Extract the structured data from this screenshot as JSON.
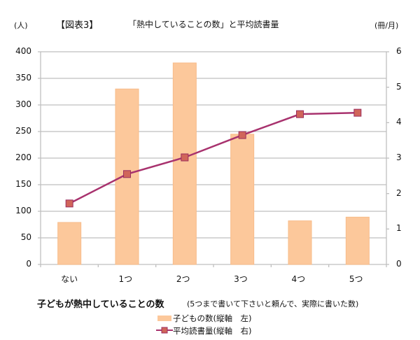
{
  "header": {
    "left_unit": "(人)",
    "figure_label": "【図表3】",
    "title": "「熱中していることの数」と平均読書量",
    "right_unit": "(冊/月)"
  },
  "axes": {
    "left_ticks": [
      "400",
      "350",
      "300",
      "250",
      "200",
      "150",
      "100",
      "50",
      "0"
    ],
    "right_ticks": [
      "6",
      "5",
      "4",
      "3",
      "2",
      "1",
      "0"
    ],
    "categories": [
      "ない",
      "1つ",
      "2つ",
      "3つ",
      "4つ",
      "5つ"
    ]
  },
  "xaxis": {
    "title": "子どもが熱中していることの数",
    "note": "(5つまで書いて下さいと頼んで、実際に書いた数)"
  },
  "legend": {
    "bar_label": "子どもの数(縦軸　左)",
    "line_label": "平均読書量(縦軸　右)"
  },
  "colors": {
    "bar_fill": "#FCC89B",
    "bar_border": "#F7BC8A",
    "line": "#A8326E",
    "marker_fill": "#D0655A",
    "marker_border": "#9B2D5E",
    "grid": "#BFBFBF"
  },
  "chart_data": {
    "type": "bar",
    "title": "「熱中していることの数」と平均読書量",
    "categories": [
      "ない",
      "1つ",
      "2つ",
      "3つ",
      "4つ",
      "5つ"
    ],
    "xlabel": "子どもが熱中していることの数 (5つまで書いて下さいと頼んで、実際に書いた数)",
    "ylabel": "(人)",
    "y2label": "(冊/月)",
    "ylim": [
      0,
      400
    ],
    "y2lim": [
      0,
      6
    ],
    "grid": true,
    "legend_position": "bottom",
    "series": [
      {
        "name": "子どもの数(縦軸　左)",
        "type": "bar",
        "axis": "left",
        "values": [
          79,
          330,
          379,
          245,
          82,
          89
        ]
      },
      {
        "name": "平均読書量(縦軸　右)",
        "type": "line",
        "axis": "right",
        "values": [
          1.72,
          2.55,
          3.02,
          3.65,
          4.24,
          4.28
        ]
      }
    ]
  }
}
